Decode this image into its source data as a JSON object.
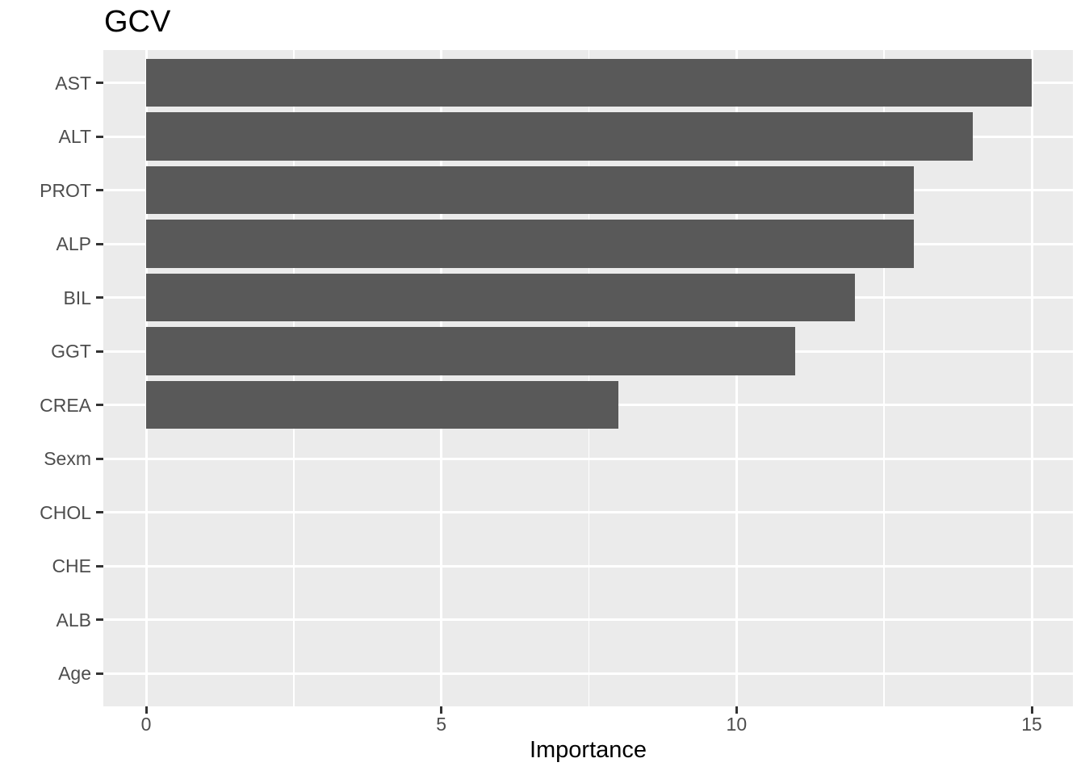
{
  "chart_data": {
    "type": "bar",
    "orientation": "horizontal",
    "title": "GCV",
    "xlabel": "Importance",
    "ylabel": "",
    "categories": [
      "AST",
      "ALT",
      "PROT",
      "ALP",
      "BIL",
      "GGT",
      "CREA",
      "Sexm",
      "CHOL",
      "CHE",
      "ALB",
      "Age"
    ],
    "values": [
      15,
      14,
      13,
      13,
      12,
      11,
      8,
      0,
      0,
      0,
      0,
      0
    ],
    "x_major_ticks": [
      0,
      5,
      10,
      15
    ],
    "x_tick_labels": [
      "0",
      "5",
      "10",
      "15"
    ],
    "x_minor_gridlines": [
      2.5,
      7.5,
      12.5
    ],
    "xlim": [
      -0.73,
      15.7
    ],
    "bar_width_fraction": 0.9,
    "grid": "on",
    "legend_position": "none",
    "colors": {
      "bar": "#595959",
      "panel_background": "#EBEBEB",
      "gridline": "#FFFFFF",
      "axis_text": "#4D4D4D",
      "title_text": "#000000",
      "axis_title_text": "#000000",
      "tick_mark": "#333333",
      "page_background": "#FFFFFF"
    }
  }
}
